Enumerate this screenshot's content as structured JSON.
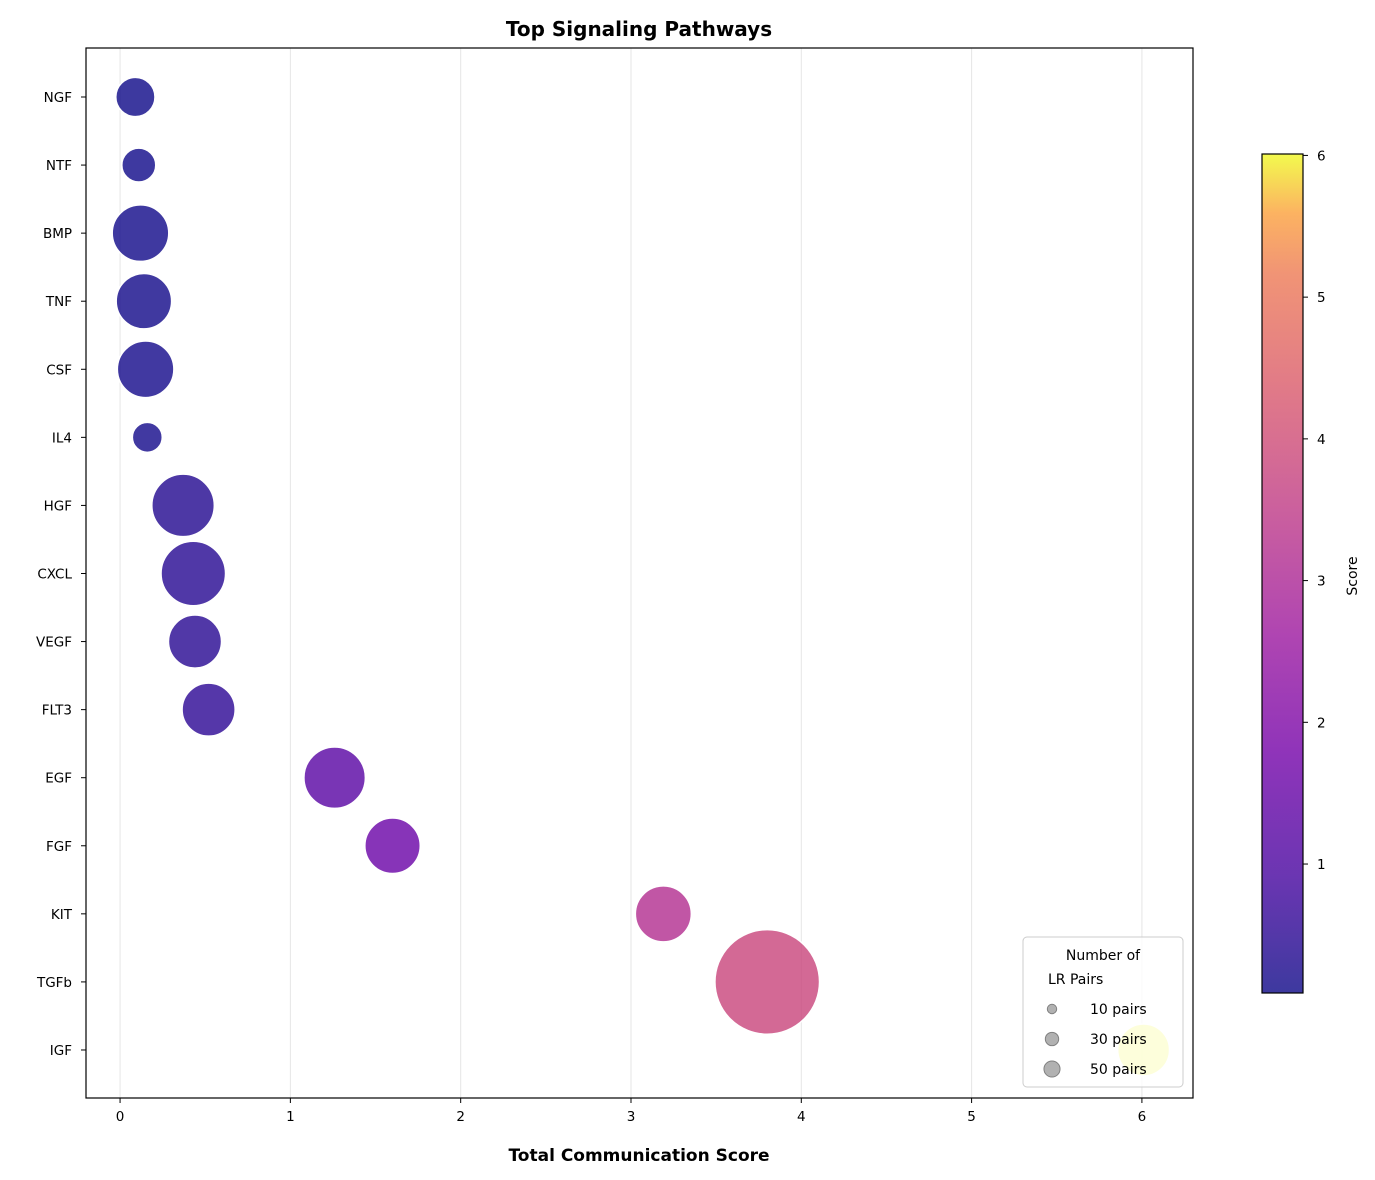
{
  "chart_data": {
    "type": "scatter",
    "title": "Top Signaling Pathways",
    "xlabel": "Total Communication Score",
    "ylabel": "",
    "xlim": [
      -0.2,
      6.3
    ],
    "xticks": [
      "0",
      "1",
      "2",
      "3",
      "4",
      "5",
      "6"
    ],
    "grid": "vertical",
    "colormap": "plasma",
    "size_encoding": "Number of LR Pairs",
    "points": [
      {
        "pathway": "NGF",
        "score": 0.09,
        "pairs": 24
      },
      {
        "pathway": "NTF",
        "score": 0.11,
        "pairs": 18
      },
      {
        "pathway": "BMP",
        "score": 0.12,
        "pairs": 50
      },
      {
        "pathway": "TNF",
        "score": 0.14,
        "pairs": 48
      },
      {
        "pathway": "CSF",
        "score": 0.15,
        "pairs": 50
      },
      {
        "pathway": "IL4",
        "score": 0.16,
        "pairs": 14
      },
      {
        "pathway": "HGF",
        "score": 0.37,
        "pairs": 61
      },
      {
        "pathway": "CXCL",
        "score": 0.43,
        "pairs": 65
      },
      {
        "pathway": "VEGF",
        "score": 0.44,
        "pairs": 44
      },
      {
        "pathway": "FLT3",
        "score": 0.52,
        "pairs": 44
      },
      {
        "pathway": "EGF",
        "score": 1.26,
        "pairs": 59
      },
      {
        "pathway": "FGF",
        "score": 1.6,
        "pairs": 48
      },
      {
        "pathway": "KIT",
        "score": 3.19,
        "pairs": 49
      },
      {
        "pathway": "TGFb",
        "score": 3.8,
        "pairs": 171
      },
      {
        "pathway": "IGF",
        "score": 6.01,
        "pairs": 42
      }
    ],
    "colorbar": {
      "label": "Score",
      "range": [
        0.09,
        6.01
      ],
      "ticks": [
        "1",
        "2",
        "3",
        "4",
        "5",
        "6"
      ]
    },
    "legend": {
      "title_line1": "Number of",
      "title_line2": "LR Pairs",
      "placement": "lower-right",
      "entries": [
        {
          "label": "10 pairs",
          "value": 10
        },
        {
          "label": "30 pairs",
          "value": 30
        },
        {
          "label": "50 pairs",
          "value": 50
        }
      ]
    }
  }
}
